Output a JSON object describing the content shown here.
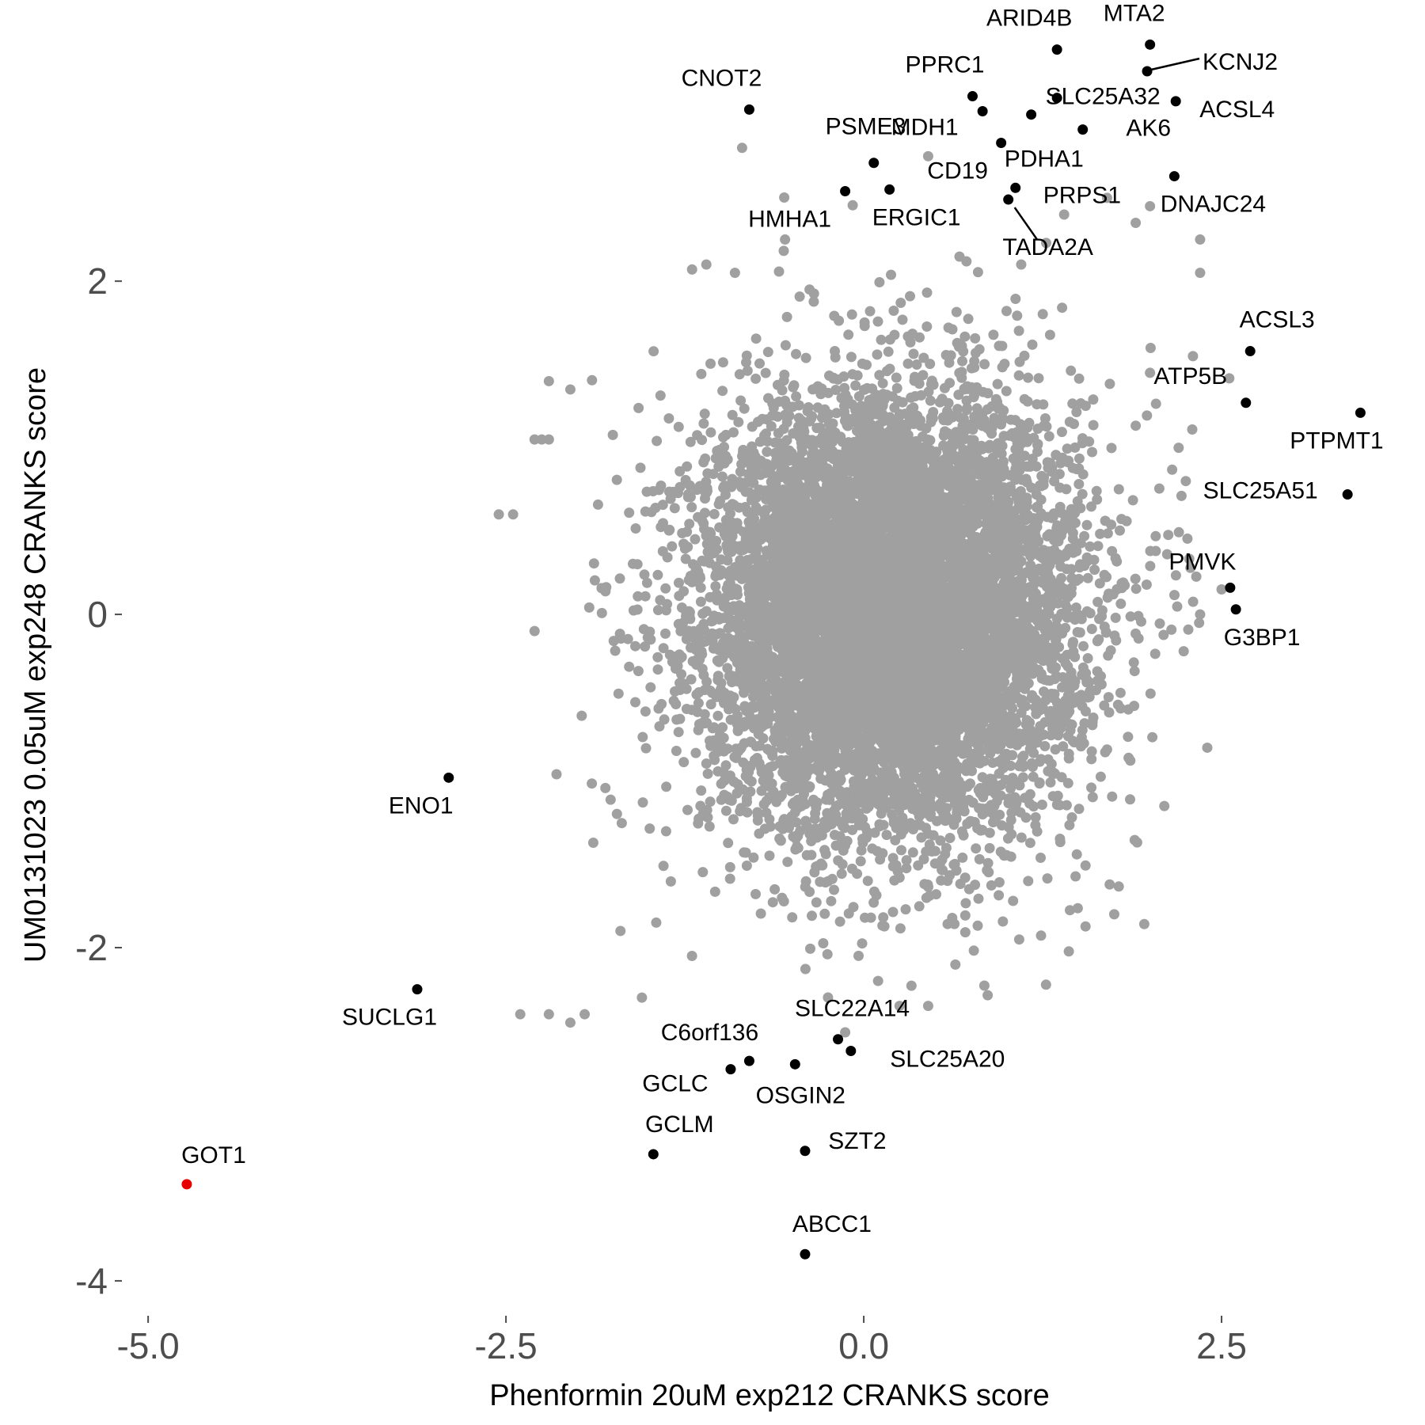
{
  "chart_data": {
    "type": "scatter",
    "xlabel": "Phenformin 20uM exp212 CRANKS score",
    "ylabel": "UM0131023 0.05uM exp248 CRANKS score",
    "xlim": [
      -5.15,
      3.7
    ],
    "ylim": [
      -4.2,
      3.45
    ],
    "x_ticks": [
      -5.0,
      -2.5,
      0.0,
      2.5
    ],
    "x_tick_labels": [
      "-5.0",
      "-2.5",
      "0.0",
      "2.5"
    ],
    "y_ticks": [
      -4,
      -2,
      0,
      2
    ],
    "y_tick_labels": [
      "-4",
      "-2",
      "0",
      "2"
    ],
    "grid": false,
    "legend": "none",
    "colors": {
      "background_genes": "#a0a0a0",
      "highlight_genes": "#000000",
      "target_gene": "#e60000"
    },
    "background_distribution": {
      "center": [
        0.2,
        0.0
      ],
      "sd": [
        0.65,
        0.65
      ],
      "count": 9000
    },
    "background_outliers": [
      {
        "x": -2.45,
        "y": 0.6
      },
      {
        "x": -2.2,
        "y": 1.4
      },
      {
        "x": -2.05,
        "y": 1.35
      },
      {
        "x": -2.3,
        "y": 1.05
      },
      {
        "x": -2.25,
        "y": 1.05
      },
      {
        "x": -2.2,
        "y": 1.05
      },
      {
        "x": -2.55,
        "y": 0.6
      },
      {
        "x": -2.3,
        "y": -0.1
      },
      {
        "x": -1.7,
        "y": -1.9
      },
      {
        "x": -1.45,
        "y": -1.85
      },
      {
        "x": -2.4,
        "y": -2.4
      },
      {
        "x": -2.2,
        "y": -2.4
      },
      {
        "x": -2.05,
        "y": -2.45
      },
      {
        "x": -1.95,
        "y": -2.4
      },
      {
        "x": -1.55,
        "y": -2.3
      },
      {
        "x": -1.2,
        "y": -2.05
      },
      {
        "x": -0.85,
        "y": 2.8
      },
      {
        "x": -0.55,
        "y": 2.25
      },
      {
        "x": 0.45,
        "y": 2.75
      },
      {
        "x": 1.4,
        "y": 2.4
      },
      {
        "x": 1.9,
        "y": 2.35
      },
      {
        "x": 2.0,
        "y": 2.45
      },
      {
        "x": 2.35,
        "y": 2.25
      },
      {
        "x": 2.35,
        "y": 2.05
      },
      {
        "x": 2.3,
        "y": 1.55
      },
      {
        "x": 2.0,
        "y": 1.45
      },
      {
        "x": 2.25,
        "y": 0.8
      },
      {
        "x": 2.5,
        "y": 0.15
      },
      {
        "x": 2.35,
        "y": 0.0
      },
      {
        "x": 2.4,
        "y": -0.8
      },
      {
        "x": 2.1,
        "y": -1.15
      },
      {
        "x": 1.75,
        "y": -1.8
      },
      {
        "x": 0.1,
        "y": -2.2
      },
      {
        "x": 0.25,
        "y": -2.35
      },
      {
        "x": 0.45,
        "y": -2.35
      },
      {
        "x": -1.1,
        "y": 2.1
      },
      {
        "x": -0.9,
        "y": 2.05
      },
      {
        "x": 1.1,
        "y": 2.1
      },
      {
        "x": 1.7,
        "y": 2.5
      },
      {
        "x": 2.2,
        "y": 1.0
      }
    ],
    "highlighted_genes": [
      {
        "name": "ARID4B",
        "x": 1.35,
        "y": 3.39
      },
      {
        "name": "MTA2",
        "x": 2.0,
        "y": 3.42
      },
      {
        "name": "KCNJ2",
        "x": 1.98,
        "y": 3.26
      },
      {
        "name": "SLC25A32",
        "x": 1.35,
        "y": 3.1
      },
      {
        "name": "ACSL4",
        "x": 2.18,
        "y": 3.08
      },
      {
        "name": "PPRC1",
        "x": 0.76,
        "y": 3.11
      },
      {
        "name": "CNOT2",
        "x": -0.8,
        "y": 3.03
      },
      {
        "name": "MDH1",
        "x": 0.83,
        "y": 3.02
      },
      {
        "name": "AK6",
        "x": 1.53,
        "y": 2.91
      },
      {
        "name": "PSME3",
        "x": 1.17,
        "y": 3.0
      },
      {
        "name": "CD19",
        "x": 0.96,
        "y": 2.83
      },
      {
        "name": "PDHA1",
        "x": 0.07,
        "y": 2.71
      },
      {
        "name": "DNAJC24",
        "x": 2.17,
        "y": 2.63
      },
      {
        "name": "ERGIC1",
        "x": 0.18,
        "y": 2.55
      },
      {
        "name": "HMHA1",
        "x": -0.13,
        "y": 2.54
      },
      {
        "name": "PRPS1",
        "x": 1.06,
        "y": 2.56
      },
      {
        "name": "TADA2A",
        "x": 1.01,
        "y": 2.49
      },
      {
        "name": "ACSL3",
        "x": 2.7,
        "y": 1.58
      },
      {
        "name": "ATP5B",
        "x": 2.67,
        "y": 1.27
      },
      {
        "name": "PTPMT1",
        "x": 3.47,
        "y": 1.21
      },
      {
        "name": "SLC25A51",
        "x": 3.38,
        "y": 0.72
      },
      {
        "name": "PMVK",
        "x": 2.56,
        "y": 0.16
      },
      {
        "name": "G3BP1",
        "x": 2.6,
        "y": 0.03
      },
      {
        "name": "ENO1",
        "x": -2.9,
        "y": -0.98
      },
      {
        "name": "SUCLG1",
        "x": -3.12,
        "y": -2.25
      },
      {
        "name": "SLC22A14",
        "x": -0.18,
        "y": -2.55
      },
      {
        "name": "SLC25A20",
        "x": -0.09,
        "y": -2.62
      },
      {
        "name": "C6orf136",
        "x": -0.8,
        "y": -2.68
      },
      {
        "name": "GCLC",
        "x": -0.93,
        "y": -2.73
      },
      {
        "name": "OSGIN2",
        "x": -0.48,
        "y": -2.7
      },
      {
        "name": "GCLM",
        "x": -1.47,
        "y": -3.24
      },
      {
        "name": "SZT2",
        "x": -0.41,
        "y": -3.22
      },
      {
        "name": "ABCC1",
        "x": -0.41,
        "y": -3.84
      }
    ],
    "target_gene": {
      "name": "GOT1",
      "x": -4.73,
      "y": -3.42
    }
  }
}
